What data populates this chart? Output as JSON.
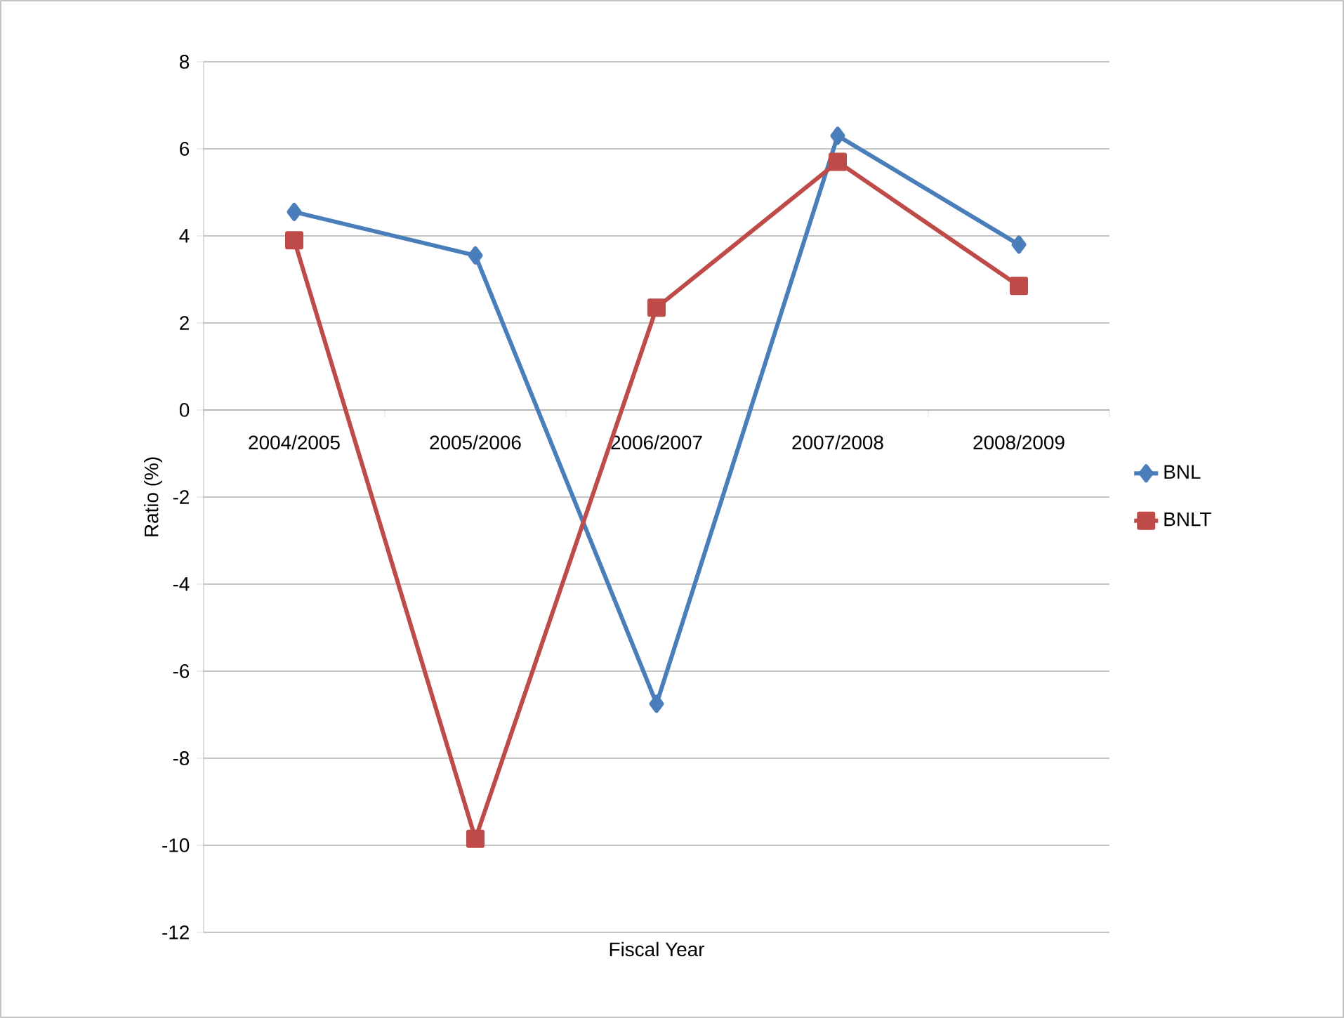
{
  "chart_data": {
    "type": "line",
    "xlabel": "Fiscal Year",
    "ylabel": "Ratio (%)",
    "categories": [
      "2004/2005",
      "2005/2006",
      "2006/2007",
      "2007/2008",
      "2008/2009"
    ],
    "series": [
      {
        "name": "BNL",
        "color": "#4a7ebb",
        "marker": "diamond",
        "values": [
          4.55,
          3.55,
          -6.75,
          6.3,
          3.8
        ]
      },
      {
        "name": "BNLT",
        "color": "#be4b48",
        "marker": "square",
        "values": [
          3.9,
          -9.85,
          2.35,
          5.7,
          2.85
        ]
      }
    ],
    "ylim": [
      -12,
      8
    ],
    "yticks": [
      -12,
      -10,
      -8,
      -6,
      -4,
      -2,
      0,
      2,
      4,
      6,
      8
    ],
    "grid": "y",
    "legend": "right",
    "line_style": "solid"
  }
}
